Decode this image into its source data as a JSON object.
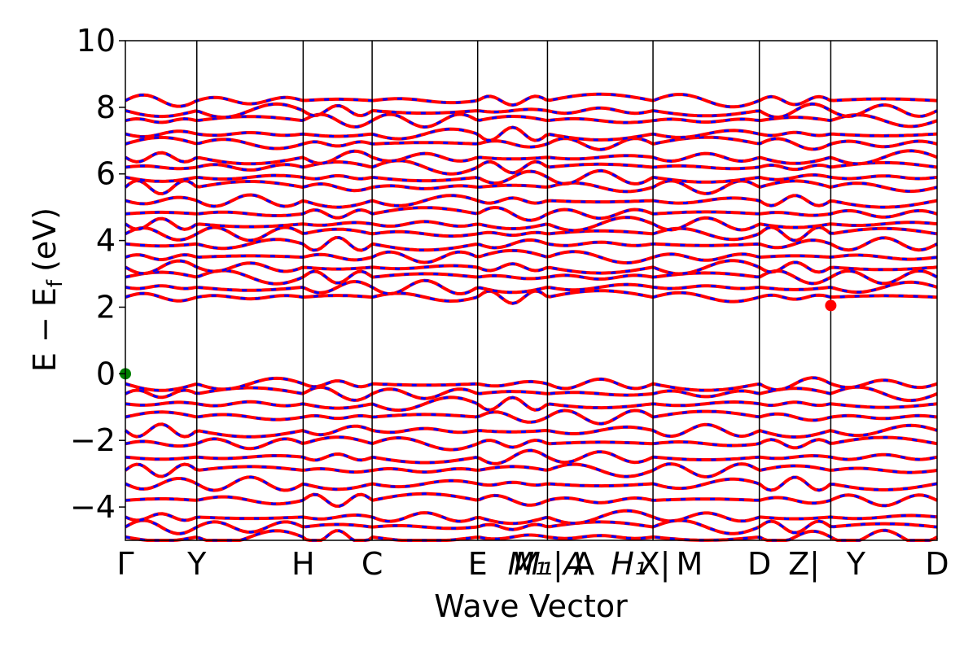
{
  "chart_data": {
    "type": "line",
    "title": "",
    "xlabel": "Wave Vector",
    "ylabel": "E − E_f (eV)",
    "ylabel_parts": {
      "main": "E − E",
      "sub": "f",
      "unit": "(eV)"
    },
    "ylim": [
      -5,
      10
    ],
    "yticks": [
      -4,
      -2,
      0,
      2,
      4,
      6,
      8,
      10
    ],
    "ytick_labels": [
      "−4",
      "−2",
      "0",
      "2",
      "4",
      "6",
      "8",
      "10"
    ],
    "grid": false,
    "kpath": [
      {
        "label": "Γ",
        "x": 0.0
      },
      {
        "label": "Y",
        "x": 0.088
      },
      {
        "label": "H",
        "x": 0.219
      },
      {
        "label": "C",
        "x": 0.304
      },
      {
        "label": "E",
        "x": 0.434
      },
      {
        "label": "M₁|A",
        "x": 0.52
      },
      {
        "label": "A",
        "x": 0.57
      },
      {
        "label": "H₁",
        "x": 0.62
      },
      {
        "label": "X|M",
        "x": 0.65
      },
      {
        "label": "D",
        "x": 0.781
      },
      {
        "label": "Z|Y",
        "x": 0.869
      },
      {
        "label": "D",
        "x": 1.0
      }
    ],
    "kpath_tick_labels": [
      "Γ",
      "Y",
      "H",
      "C",
      "E",
      "M₁",
      "M₁|A",
      "A",
      "H₁",
      "X|",
      "M",
      "D",
      "Z|",
      "Y",
      "D"
    ],
    "band_colors": {
      "spin_up": "#ff0000",
      "spin_down": "#0000ff"
    },
    "series": [
      {
        "name": "valence-band-maximum",
        "x": 0.0,
        "y": 0.0,
        "color": "#008000"
      },
      {
        "name": "conduction-band-minimum",
        "x": 0.869,
        "y": 2.05,
        "color": "#ff0000"
      }
    ],
    "band_energies_sample": [
      -4.9,
      -4.6,
      -4.3,
      -3.8,
      -3.3,
      -2.9,
      -2.5,
      -2.1,
      -1.7,
      -1.3,
      -0.9,
      -0.6,
      -0.3,
      2.3,
      2.6,
      2.9,
      3.2,
      3.5,
      3.9,
      4.2,
      4.5,
      4.8,
      5.2,
      5.6,
      5.9,
      6.2,
      6.5,
      6.9,
      7.2,
      7.6,
      7.9,
      8.2
    ]
  }
}
